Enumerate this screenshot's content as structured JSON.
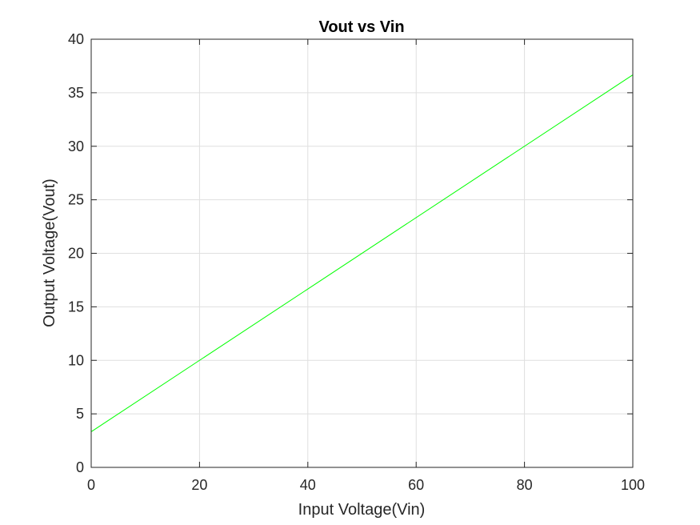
{
  "chart_data": {
    "type": "line",
    "title": "Vout vs Vin",
    "xlabel": "Input Voltage(Vin)",
    "ylabel": "Output Voltage(Vout)",
    "xlim": [
      0,
      100
    ],
    "ylim": [
      0,
      40
    ],
    "xticks": [
      "0",
      "20",
      "40",
      "60",
      "80",
      "100"
    ],
    "yticks": [
      "0",
      "5",
      "10",
      "15",
      "20",
      "25",
      "30",
      "35",
      "40"
    ],
    "grid": true,
    "series": [
      {
        "color": "#00ff00",
        "x": [
          0,
          100
        ],
        "y": [
          3.33,
          36.67
        ]
      }
    ]
  }
}
